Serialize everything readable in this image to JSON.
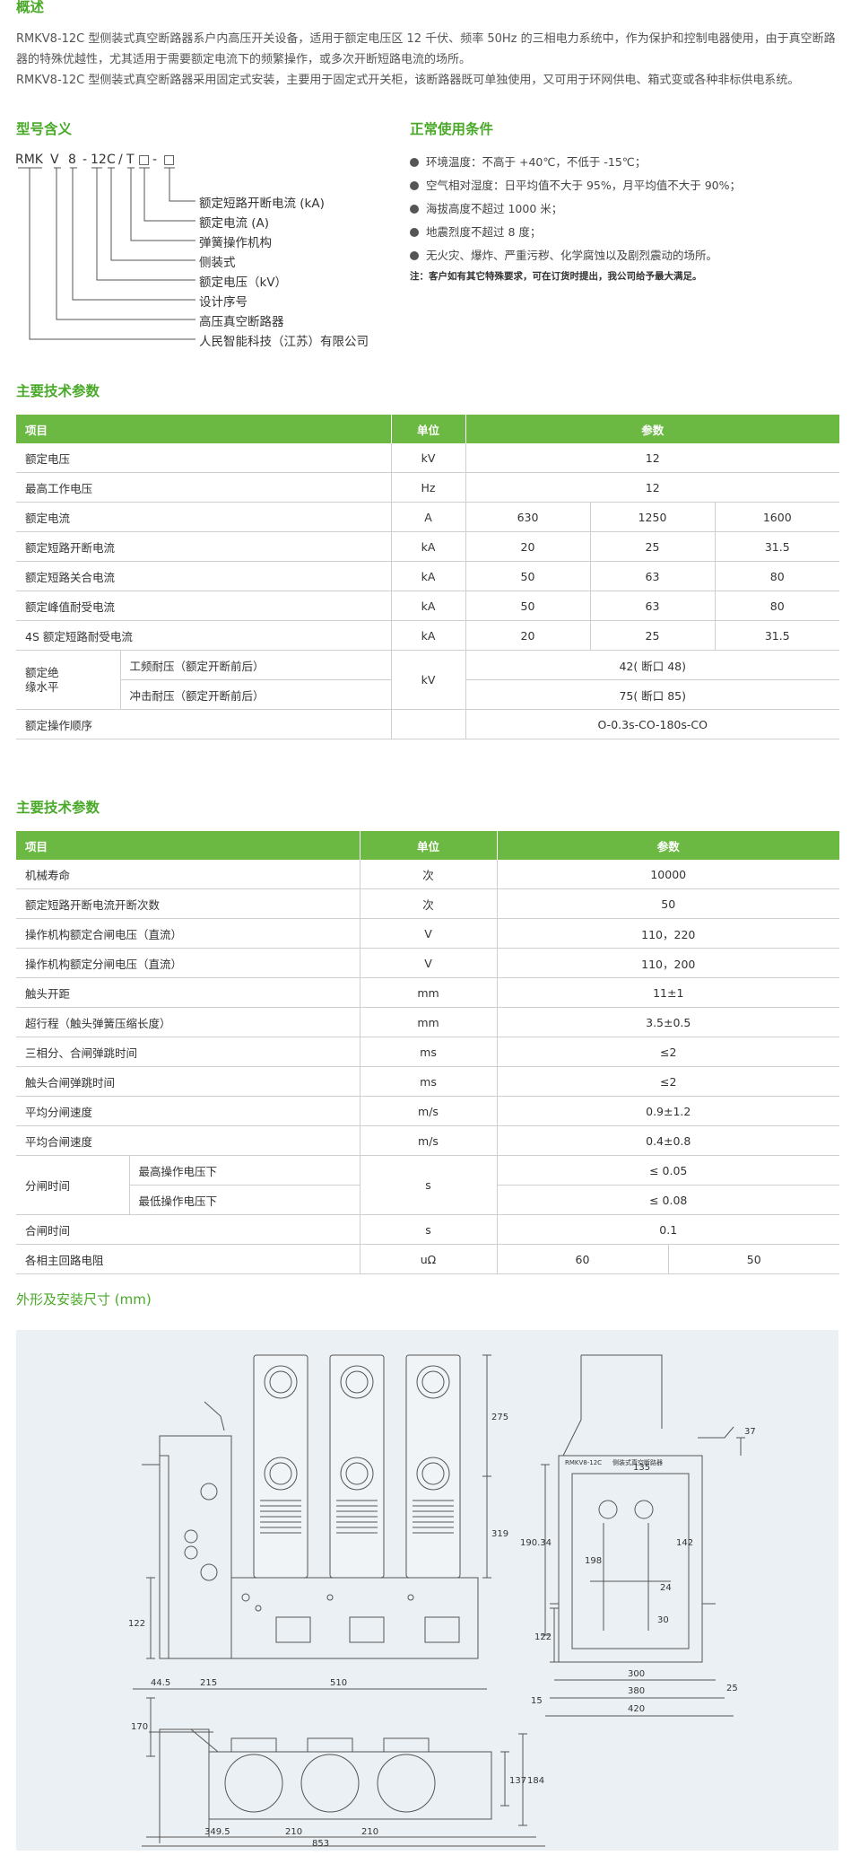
{
  "overview": {
    "title": "概述",
    "p1": "RMKV8-12C 型侧装式真空断路器系户内高压开关设备，适用于额定电压区 12 千伏、频率 50Hz 的三相电力系统中，作为保护和控制电器使用，由于真空断路器的特殊优越性，尤其适用于需要额定电流下的频繁操作，或多次开断短路电流的场所。",
    "p2": "RMKV8-12C 型侧装式真空断路器采用固定式安装，主要用于固定式开关柜，该断路器既可单独使用，又可用于环网供电、箱式变或各种非标供电系统。"
  },
  "model": {
    "title": "型号含义",
    "code": [
      "RMK",
      "V",
      "8",
      "-",
      "12",
      "C",
      "/",
      "T",
      "□",
      "-",
      "□"
    ],
    "meanings": [
      "额定短路开断电流 (kA)",
      "额定电流 (A)",
      "弹簧操作机构",
      "侧装式",
      "额定电压（kV）",
      "设计序号",
      "高压真空断路器",
      "人民智能科技（江苏）有限公司"
    ]
  },
  "conditions": {
    "title": "正常使用条件",
    "items": [
      "环境温度：不高于 +40℃，不低于 -15℃；",
      "空气相对湿度：日平均值不大于 95%，月平均值不大于 90%；",
      "海拔高度不超过 1000 米；",
      "地震烈度不超过 8 度；",
      "无火灾、爆炸、严重污秽、化学腐蚀以及剧烈震动的场所。"
    ],
    "note": "注：客户如有其它特殊要求，可在订货时提出，我公司给予最大满足。"
  },
  "table1": {
    "title": "主要技术参数",
    "headers": [
      "项目",
      "单位",
      "参数"
    ],
    "rows": [
      {
        "item": "额定电压",
        "unit": "kV",
        "values": [
          "12"
        ]
      },
      {
        "item": "最高工作电压",
        "unit": "Hz",
        "values": [
          "12"
        ]
      },
      {
        "item": "额定电流",
        "unit": "A",
        "values": [
          "630",
          "1250",
          "1600"
        ]
      },
      {
        "item": "额定短路开断电流",
        "unit": "kA",
        "values": [
          "20",
          "25",
          "31.5"
        ]
      },
      {
        "item": "额定短路关合电流",
        "unit": "kA",
        "values": [
          "50",
          "63",
          "80"
        ]
      },
      {
        "item": "额定峰值耐受电流",
        "unit": "kA",
        "values": [
          "50",
          "63",
          "80"
        ]
      },
      {
        "item": "4S 额定短路耐受电流",
        "unit": "kA",
        "values": [
          "20",
          "25",
          "31.5"
        ]
      }
    ],
    "insulation": {
      "group": "额定绝缘水平",
      "unit": "kV",
      "sub1": "工频耐压（额定开断前后）",
      "val1": "42( 断口 48)",
      "sub2": "冲击耐压（额定开断前后）",
      "val2": "75( 断口 85)"
    },
    "last": {
      "item": "额定操作顺序",
      "value": "O-0.3s-CO-180s-CO"
    }
  },
  "table2": {
    "title": "主要技术参数",
    "headers": [
      "项目",
      "单位",
      "参数"
    ],
    "rows": [
      {
        "item": "机械寿命",
        "unit": "次",
        "value": "10000"
      },
      {
        "item": "额定短路开断电流开断次数",
        "unit": "次",
        "value": "50"
      },
      {
        "item": "操作机构额定合闸电压（直流）",
        "unit": "V",
        "value": "110，220"
      },
      {
        "item": "操作机构额定分闸电压（直流）",
        "unit": "V",
        "value": "110，200"
      },
      {
        "item": "触头开距",
        "unit": "mm",
        "value": "11±1"
      },
      {
        "item": "超行程（触头弹簧压缩长度）",
        "unit": "mm",
        "value": "3.5±0.5"
      },
      {
        "item": "三相分、合闸弹跳时间",
        "unit": "ms",
        "value": "≤2"
      },
      {
        "item": "触头合闸弹跳时间",
        "unit": "ms",
        "value": "≤2"
      },
      {
        "item": "平均分闸速度",
        "unit": "m/s",
        "value": "0.9±1.2"
      },
      {
        "item": "平均合闸速度",
        "unit": "m/s",
        "value": "0.4±0.8"
      }
    ],
    "opening": {
      "group": "分闸时间",
      "unit": "s",
      "sub1": "最高操作电压下",
      "val1": "≤ 0.05",
      "sub2": "最低操作电压下",
      "val2": "≤ 0.08"
    },
    "closing": {
      "item": "合闸时间",
      "unit": "s",
      "value": "0.1"
    },
    "resistance": {
      "item": "各相主回路电阻",
      "unit": "uΩ",
      "values": [
        "60",
        "50"
      ]
    }
  },
  "drawing": {
    "title": "外形及安装尺寸 (mm)",
    "front_dims": [
      "275",
      "319",
      "122"
    ],
    "side_dims": [
      "37",
      "135",
      "190.34",
      "198",
      "142",
      "24",
      "30",
      "122",
      "300",
      "380",
      "420",
      "15",
      "25"
    ],
    "side_label1": "RMKV8-12C",
    "side_label2": "侧装式真空断路器",
    "top_dims": [
      "44.5",
      "215",
      "510",
      "170",
      "137",
      "184",
      "349.5",
      "210",
      "210",
      "853"
    ]
  }
}
